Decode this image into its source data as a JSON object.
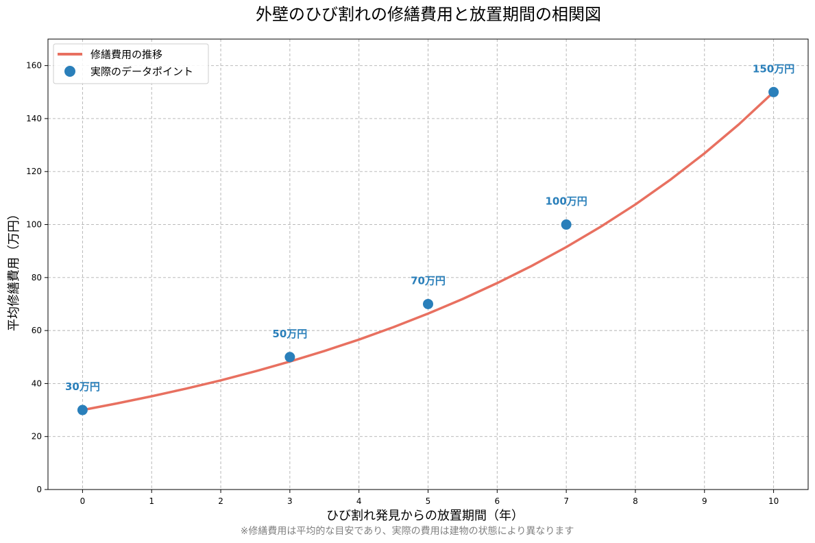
{
  "colors": {
    "curve": "#e87060",
    "points": "#2a7fba",
    "labels": "#2a7fba",
    "grid": "#b0b0b0",
    "footnote": "#808080"
  },
  "chart_data": {
    "type": "line",
    "title": "外壁のひび割れの修繕費用と放置期間の相関図",
    "xlabel": "ひび割れ発見からの放置期間（年）",
    "ylabel": "平均修繕費用（万円）",
    "xlim": [
      -0.5,
      10.5
    ],
    "ylim": [
      0,
      170
    ],
    "xticks": [
      0,
      1,
      2,
      3,
      4,
      5,
      6,
      7,
      8,
      9,
      10
    ],
    "yticks": [
      0,
      20,
      40,
      60,
      80,
      100,
      120,
      140,
      160
    ],
    "grid": true,
    "legend_position": "top-left",
    "series": [
      {
        "name": "修繕費用の推移",
        "kind": "line",
        "x": [
          0,
          0.5,
          1,
          1.5,
          2,
          2.5,
          3,
          3.5,
          4,
          4.5,
          5,
          5.5,
          6,
          6.5,
          7,
          7.5,
          8,
          8.5,
          9,
          9.5,
          10
        ],
        "y": [
          30,
          32.5,
          35.2,
          38.1,
          41.2,
          44.6,
          48.3,
          52.3,
          56.6,
          61.3,
          66.4,
          71.9,
          77.9,
          84.4,
          91.5,
          99.2,
          107.6,
          116.8,
          126.9,
          137.9,
          150
        ]
      },
      {
        "name": "実際のデータポイント",
        "kind": "scatter",
        "x": [
          0,
          3,
          5,
          7,
          10
        ],
        "y": [
          30,
          50,
          70,
          100,
          150
        ],
        "labels": [
          "30万円",
          "50万円",
          "70万円",
          "100万円",
          "150万円"
        ]
      }
    ],
    "footnote": "※修繕費用は平均的な目安であり、実際の費用は建物の状態により異なります"
  }
}
